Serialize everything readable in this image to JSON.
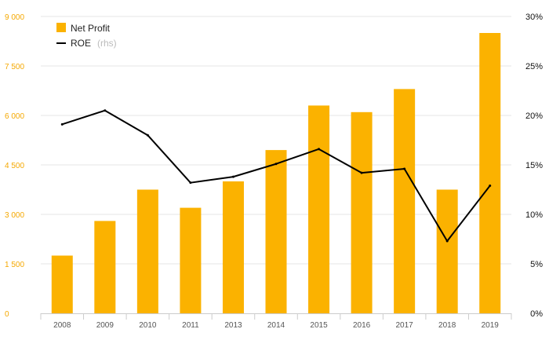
{
  "chart_data": {
    "type": "bar",
    "categories": [
      "2008",
      "2009",
      "2010",
      "2011",
      "2013",
      "2014",
      "2015",
      "2016",
      "2017",
      "2018",
      "2019"
    ],
    "series": [
      {
        "name": "Net Profit",
        "type": "bar",
        "axis": "left",
        "color": "#fbb200",
        "values": [
          1750,
          2800,
          3750,
          3200,
          4000,
          4950,
          6300,
          6100,
          6800,
          3750,
          8500
        ]
      },
      {
        "name": "ROE",
        "legend_note": "(rhs)",
        "type": "line",
        "axis": "right",
        "color": "#000000",
        "values": [
          19.1,
          20.5,
          18.0,
          13.2,
          13.8,
          15.1,
          16.6,
          14.2,
          14.6,
          7.3,
          12.9
        ]
      }
    ],
    "y_left": {
      "range": [
        0,
        9000
      ],
      "ticks": [
        0,
        1500,
        3000,
        4500,
        6000,
        7500,
        9000
      ],
      "tick_labels": [
        "0",
        "1 500",
        "3 000",
        "4 500",
        "6 000",
        "7 500",
        "9 000"
      ],
      "color": "#f5a800"
    },
    "y_right": {
      "range": [
        0,
        30
      ],
      "ticks": [
        0,
        5,
        10,
        15,
        20,
        25,
        30
      ],
      "tick_labels": [
        "0%",
        "5%",
        "10%",
        "15%",
        "20%",
        "25%",
        "30%"
      ]
    },
    "grid": true,
    "legend": "top-left",
    "title": "",
    "xlabel": "",
    "ylabel": ""
  }
}
